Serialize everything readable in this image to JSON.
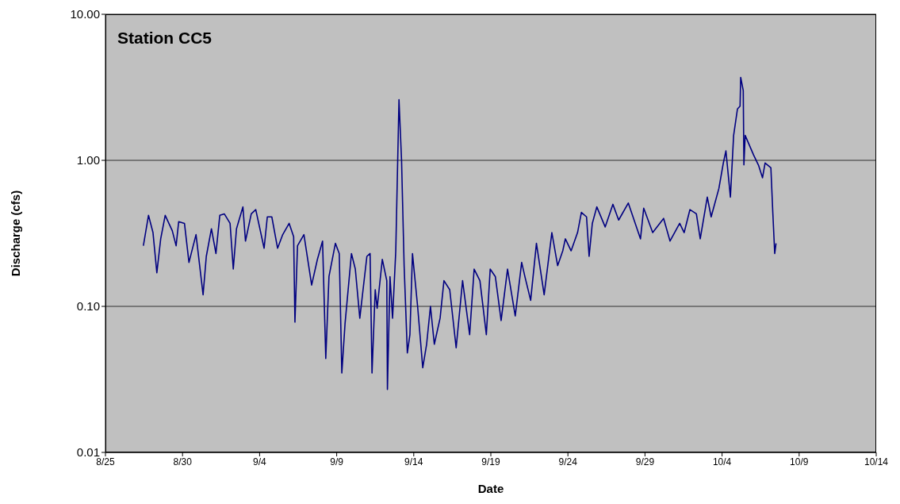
{
  "chart_data": {
    "type": "line",
    "title": "Station CC5",
    "xlabel": "Date",
    "ylabel": "Discharge (cfs)",
    "log": "y",
    "grid": "y",
    "marker": "none",
    "line_style": "solid",
    "xlim": [
      "--08-25",
      "--10-14"
    ],
    "xticks": [
      {
        "value": "--08-25",
        "label": "8/25"
      },
      {
        "value": "--08-30",
        "label": "8/30"
      },
      {
        "value": "--09-04",
        "label": "9/4"
      },
      {
        "value": "--09-09",
        "label": "9/9"
      },
      {
        "value": "--09-14",
        "label": "9/14"
      },
      {
        "value": "--09-19",
        "label": "9/19"
      },
      {
        "value": "--09-24",
        "label": "9/24"
      },
      {
        "value": "--09-29",
        "label": "9/29"
      },
      {
        "value": "--10-04",
        "label": "10/4"
      },
      {
        "value": "--10-09",
        "label": "10/9"
      },
      {
        "value": "--10-14",
        "label": "10/14"
      }
    ],
    "ylim": [
      0.01,
      10
    ],
    "yticks": [
      {
        "value": 0.01,
        "label": "0.01"
      },
      {
        "value": 0.1,
        "label": "0.10"
      },
      {
        "value": 1,
        "label": "1.00"
      },
      {
        "value": 10,
        "label": "10.00"
      }
    ],
    "x": [
      "--08-27T11:00",
      "--08-27T19:00",
      "--08-28T02:00",
      "--08-28T08:00",
      "--08-28T14:00",
      "--08-28T21:00",
      "--08-29T08:00",
      "--08-29T14:00",
      "--08-29T18:00",
      "--08-30T03:00",
      "--08-30T10:00",
      "--08-30T21:00",
      "--08-31T08:00",
      "--08-31T13:00",
      "--08-31T21:00",
      "--09-01T04:00",
      "--09-01T10:00",
      "--09-01T17:00",
      "--09-02T02:00",
      "--09-02T07:00",
      "--09-02T12:00",
      "--09-02T22:00",
      "--09-03T02:00",
      "--09-03T11:00",
      "--09-03T18:00",
      "--09-04T07:00",
      "--09-04T12:00",
      "--09-04T19:00",
      "--09-05T04:00",
      "--09-05T12:00",
      "--09-05T22:00",
      "--09-06T05:00",
      "--09-06T07:00",
      "--09-06T11:00",
      "--09-06T21:00",
      "--09-07T09:00",
      "--09-07T18:00",
      "--09-08T02:00",
      "--09-08T07:00",
      "--09-08T12:00",
      "--09-08T22:00",
      "--09-09T04:00",
      "--09-09T08:00",
      "--09-09T13:00",
      "--09-09T23:00",
      "--09-10T05:00",
      "--09-10T12:00",
      "--09-10T23:00",
      "--09-11T04:00",
      "--09-11T07:00",
      "--09-11T12:00",
      "--09-11T15:00",
      "--09-11T23:00",
      "--09-12T06:00",
      "--09-12T07:00",
      "--09-12T11:00",
      "--09-12T15:00",
      "--09-12T20:00",
      "--09-13T01:00",
      "--09-13T05:00",
      "--09-13T09:00",
      "--09-13T14:00",
      "--09-13T18:00",
      "--09-13T22:00",
      "--09-14T06:00",
      "--09-14T14:00",
      "--09-14T20:00",
      "--09-15T02:00",
      "--09-15T08:00",
      "--09-15T17:00",
      "--09-15T23:00",
      "--09-16T08:00",
      "--09-16T18:00",
      "--09-17T04:00",
      "--09-17T15:00",
      "--09-17T22:00",
      "--09-18T07:00",
      "--09-18T17:00",
      "--09-18T23:00",
      "--09-19T07:00",
      "--09-19T16:00",
      "--09-20T02:00",
      "--09-20T14:00",
      "--09-21T00:00",
      "--09-21T05:00",
      "--09-21T14:00",
      "--09-21T23:00",
      "--09-22T11:00",
      "--09-22T23:00",
      "--09-23T08:00",
      "--09-23T16:00",
      "--09-23T20:00",
      "--09-24T05:00",
      "--09-24T15:00",
      "--09-24T21:00",
      "--09-25T05:00",
      "--09-25T09:00",
      "--09-25T14:00",
      "--09-25T21:00",
      "--09-26T10:00",
      "--09-26T22:00",
      "--09-27T07:00",
      "--09-27T22:00",
      "--09-28T17:00",
      "--09-28T22:00",
      "--09-29T12:00",
      "--09-30T05:00",
      "--09-30T15:00",
      "--10-01T06:00",
      "--10-01T13:00",
      "--10-01T22:00",
      "--10-02T08:00",
      "--10-02T14:00",
      "--10-03T01:00",
      "--10-03T07:00",
      "--10-03T19:00",
      "--10-04T02:00",
      "--10-04T06:00",
      "--10-04T13:00",
      "--10-04T18:00",
      "--10-05T00:00",
      "--10-05T04:00",
      "--10-05T05:00",
      "--10-05T09:00",
      "--10-05T10:00",
      "--10-05T12:00",
      "--10-06T01:00",
      "--10-06T09:00",
      "--10-06T15:00",
      "--10-06T19:00",
      "--10-07T04:00",
      "--10-07T07:00",
      "--10-07T10:00",
      "--10-07T12:00"
    ],
    "series": [
      {
        "color": "#000080",
        "values": [
          0.26,
          0.42,
          0.32,
          0.17,
          0.29,
          0.42,
          0.33,
          0.26,
          0.38,
          0.37,
          0.2,
          0.31,
          0.12,
          0.22,
          0.34,
          0.23,
          0.42,
          0.43,
          0.37,
          0.18,
          0.34,
          0.48,
          0.28,
          0.43,
          0.46,
          0.25,
          0.41,
          0.41,
          0.25,
          0.31,
          0.37,
          0.3,
          0.078,
          0.26,
          0.31,
          0.14,
          0.21,
          0.28,
          0.044,
          0.16,
          0.27,
          0.23,
          0.035,
          0.076,
          0.23,
          0.18,
          0.083,
          0.22,
          0.23,
          0.035,
          0.13,
          0.097,
          0.21,
          0.15,
          0.027,
          0.16,
          0.083,
          0.24,
          2.6,
          1.0,
          0.19,
          0.048,
          0.064,
          0.23,
          0.1,
          0.038,
          0.055,
          0.1,
          0.055,
          0.083,
          0.15,
          0.13,
          0.052,
          0.15,
          0.064,
          0.18,
          0.15,
          0.064,
          0.18,
          0.16,
          0.08,
          0.18,
          0.086,
          0.2,
          0.16,
          0.11,
          0.27,
          0.12,
          0.32,
          0.19,
          0.24,
          0.29,
          0.24,
          0.32,
          0.44,
          0.41,
          0.22,
          0.37,
          0.48,
          0.35,
          0.5,
          0.39,
          0.51,
          0.29,
          0.47,
          0.32,
          0.4,
          0.28,
          0.37,
          0.32,
          0.46,
          0.43,
          0.29,
          0.56,
          0.41,
          0.64,
          0.96,
          1.16,
          0.56,
          1.48,
          2.25,
          2.35,
          3.7,
          3.0,
          0.93,
          1.48,
          1.09,
          0.92,
          0.76,
          0.96,
          0.89,
          0.44,
          0.23,
          0.27
        ]
      }
    ]
  }
}
